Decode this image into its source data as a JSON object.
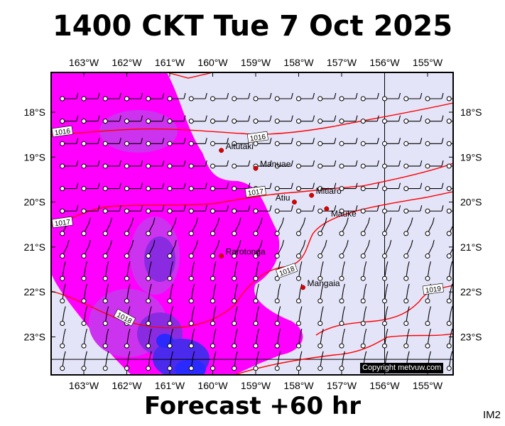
{
  "title": "1400 CKT Tue 7 Oct 2025",
  "footer": "Forecast +60 hr",
  "corner_tag": "IM2",
  "copyright": "Copyright metvuw.com",
  "colors": {
    "ocean": "#e4e4f9",
    "rain_light": "#ff00ff",
    "rain_mid": "#cc33ee",
    "rain_heavy": "#8a2be2",
    "rain_very_heavy": "#4b2aee",
    "rain_extreme": "#2a2aff",
    "isobar": "#ff0000",
    "island": "#dd0000",
    "frame": "#000000"
  },
  "axes": {
    "longitudes": [
      "163°W",
      "162°W",
      "161°W",
      "160°W",
      "159°W",
      "158°W",
      "157°W",
      "156°W",
      "155°W"
    ],
    "latitudes": [
      "18°S",
      "19°S",
      "20°S",
      "21°S",
      "22°S",
      "23°S"
    ]
  },
  "islands": [
    {
      "name": "Aitutaki",
      "lon": -159.8,
      "lat": -18.85
    },
    {
      "name": "Manuae",
      "lon": -159.0,
      "lat": -19.25
    },
    {
      "name": "Mitiaro",
      "lon": -157.7,
      "lat": -19.85
    },
    {
      "name": "Atiu",
      "lon": -158.1,
      "lat": -20.0
    },
    {
      "name": "Mauke",
      "lon": -157.35,
      "lat": -20.15
    },
    {
      "name": "Rarotonga",
      "lon": -159.8,
      "lat": -21.2
    },
    {
      "name": "Mangaia",
      "lon": -157.9,
      "lat": -21.9
    }
  ],
  "isobar_labels": [
    "1016",
    "1016",
    "1017",
    "1017",
    "1018",
    "1018",
    "1019"
  ],
  "wind_rows": [
    {
      "lat": -17.7,
      "speed": "moderate",
      "dir": "E"
    },
    {
      "lat": -18.2,
      "speed": "moderate",
      "dir": "E"
    },
    {
      "lat": -18.7,
      "speed": "moderate",
      "dir": "E"
    },
    {
      "lat": -19.2,
      "speed": "moderate",
      "dir": "E"
    },
    {
      "lat": -19.7,
      "speed": "moderate",
      "dir": "E"
    },
    {
      "lat": -20.2,
      "speed": "moderate",
      "dir": "E"
    },
    {
      "lat": -20.7,
      "speed": "light",
      "dir": "SE"
    },
    {
      "lat": -21.2,
      "speed": "light",
      "dir": "SE"
    },
    {
      "lat": -21.7,
      "speed": "light",
      "dir": "S"
    },
    {
      "lat": -22.2,
      "speed": "light",
      "dir": "S"
    },
    {
      "lat": -22.7,
      "speed": "light",
      "dir": "S"
    },
    {
      "lat": -23.2,
      "speed": "light",
      "dir": "S"
    },
    {
      "lat": -23.7,
      "speed": "light",
      "dir": "S"
    }
  ]
}
